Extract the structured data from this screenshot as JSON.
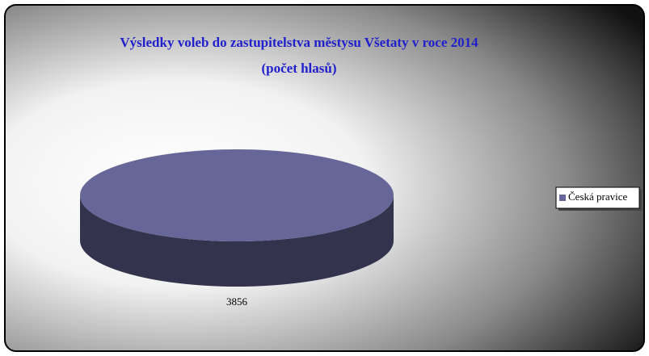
{
  "chart_data": {
    "type": "pie",
    "title": "Výsledky voleb do zastupitelstva městysu Všetaty v roce 2014",
    "subtitle": "(počet hlasů)",
    "categories": [
      "Česká pravice"
    ],
    "values": [
      3856
    ],
    "colors": [
      "#666699"
    ],
    "legend": "right"
  }
}
